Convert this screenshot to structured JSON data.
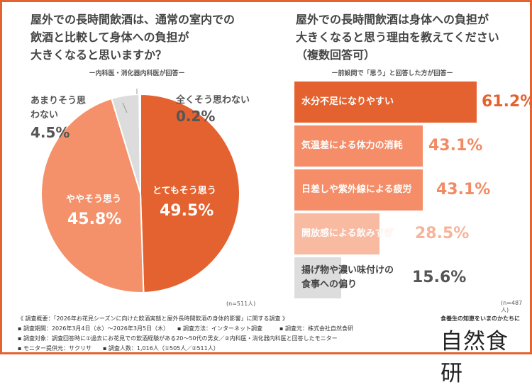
{
  "left": {
    "title_lines": [
      "屋外での長時間飲酒は、通常の室内での",
      "飲酒と比較して身体への負担が",
      "大きくなると思いますか？"
    ],
    "subtitle": "ー内科医・消化器内科医が回答ー",
    "n": "(n=511人)"
  },
  "right": {
    "title_lines": [
      "屋外での長時間飲酒は身体への負担が",
      "大きくなると思う理由を教えてください",
      "（複数回答可）"
    ],
    "subtitle": "ー前設問で「思う」と回答した方が回答ー",
    "n": "(n=487人)"
  },
  "chart_data": [
    {
      "type": "pie",
      "slices": [
        {
          "label": "とてもそう思う",
          "value": 49.5,
          "display": "49.5%",
          "color": "#e4622f"
        },
        {
          "label": "ややそう思う",
          "value": 45.8,
          "display": "45.8%",
          "color": "#f4916b"
        },
        {
          "label": "あまりそう思わない",
          "value": 4.5,
          "display": "4.5%",
          "color": "#dcdcdc"
        },
        {
          "label": "全くそう思わない",
          "value": 0.2,
          "display": "0.2%",
          "color": "#bbbbbb"
        }
      ]
    },
    {
      "type": "bar",
      "orientation": "horizontal",
      "categories": [
        "水分不足になりやすい",
        "気温差による体力の消耗",
        "日差しや紫外線による疲労",
        "開放感による飲みすぎ",
        "揚げ物や濃い味付けの食事への偏り"
      ],
      "values": [
        61.2,
        43.1,
        43.1,
        28.5,
        15.6
      ],
      "display": [
        "61.2%",
        "43.1%",
        "43.1%",
        "28.5%",
        "15.6%"
      ],
      "colors": [
        "#e4622f",
        "#f48d68",
        "#f48d68",
        "#f8baa1",
        "#dddddd"
      ],
      "value_colors": [
        "#e4622f",
        "#f28a63",
        "#f28a63",
        "#f6b49a",
        "#555555"
      ]
    }
  ],
  "footer": {
    "lines": [
      "《 調査概要：「2026年お花見シーズンに向けた飲酒実態と屋外長時間飲酒の身体的影響」に関する調査 》",
      "▪ 調査期間：2026年3月4日（水）〜2026年3月5日（木）　　▪ 調査方法：インターネット調査　　　▪ 調査元：株式会社自然食研",
      "▪ 調査対象：調査回答時に①過去にお花見での飲酒経験がある20〜50代の男女／②内科医・消化器内科医と回答したモニター",
      "▪ モニター提供元：サクリサ　　▪ 調査人数：1,016人（①505人／②511人）"
    ],
    "logo_tagline": "食養生の知恵をいまのかたちに",
    "logo": "自然食研"
  }
}
